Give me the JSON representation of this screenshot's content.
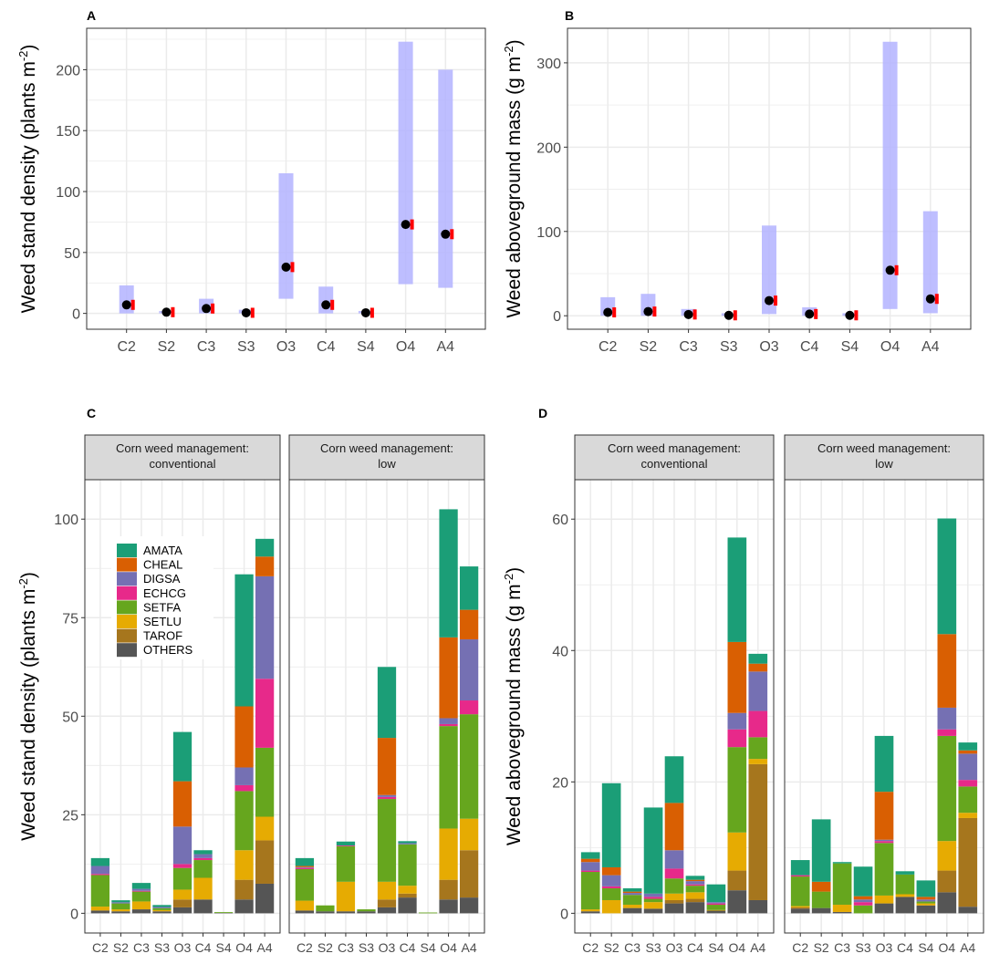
{
  "colors": {
    "panel_bg": "#ffffff",
    "grid": "#ebebeb",
    "frame": "#333333",
    "ci": "#b3b3ff",
    "point": "#000000",
    "obs": "#ff0000",
    "strip": "#d9d9d9",
    "text": "#4d4d4d"
  },
  "chart_data": [
    {
      "id": "A",
      "type": "pointrange",
      "panel_label": "A",
      "ylabel_main": "Weed stand density (plants m",
      "ylabel_sup": "-2",
      "ylabel_close": ")",
      "categories": [
        "C2",
        "S2",
        "C3",
        "S3",
        "O3",
        "C4",
        "S4",
        "O4",
        "A4"
      ],
      "estimate": [
        7,
        1,
        4,
        0.5,
        38,
        7,
        0.5,
        73,
        65
      ],
      "lower": [
        0,
        0,
        0,
        0,
        12,
        0,
        0,
        24,
        21
      ],
      "upper": [
        23,
        2,
        12,
        3,
        115,
        22,
        2,
        223,
        200
      ],
      "observed": [
        7,
        1,
        4,
        0.5,
        38,
        7,
        0.5,
        73,
        65
      ],
      "yticks": [
        0,
        50,
        100,
        150,
        200
      ],
      "ylim": [
        -13,
        234
      ]
    },
    {
      "id": "B",
      "type": "pointrange",
      "panel_label": "B",
      "ylabel_main": "Weed aboveground mass (g m",
      "ylabel_sup": "-2",
      "ylabel_close": ")",
      "categories": [
        "C2",
        "S2",
        "C3",
        "S3",
        "O3",
        "C4",
        "S4",
        "O4",
        "A4"
      ],
      "estimate": [
        4,
        5,
        1.5,
        0.5,
        18,
        2,
        0.5,
        54,
        20
      ],
      "lower": [
        0,
        0,
        0,
        0,
        2,
        0,
        0,
        8,
        3
      ],
      "upper": [
        22,
        26,
        8,
        3,
        107,
        10,
        3,
        325,
        124
      ],
      "observed": [
        4,
        5,
        1.5,
        0.5,
        18,
        2,
        0.5,
        54,
        20
      ],
      "yticks": [
        0,
        100,
        200,
        300
      ],
      "ylim": [
        -16,
        341
      ]
    },
    {
      "id": "C",
      "type": "stacked-bar",
      "panel_label": "C",
      "ylabel_main": "Weed stand density (plants m",
      "ylabel_sup": "-2",
      "ylabel_close": ")",
      "facets": [
        "conventional",
        "low"
      ],
      "facet_strips": [
        [
          "Corn weed management:",
          "conventional"
        ],
        [
          "Corn weed management:",
          "low"
        ]
      ],
      "categories": [
        "C2",
        "S2",
        "C3",
        "S3",
        "O3",
        "C4",
        "S4",
        "O4",
        "A4"
      ],
      "species": [
        "AMATA",
        "CHEAL",
        "DIGSA",
        "ECHCG",
        "SETFA",
        "SETLU",
        "TAROF",
        "OTHERS"
      ],
      "species_colors": [
        "#1b9e77",
        "#d95f02",
        "#7570b3",
        "#e7298a",
        "#66a61e",
        "#e6ab02",
        "#a6761d",
        "#555555"
      ],
      "values": {
        "conventional": [
          [
            2,
            0,
            2,
            0.3,
            8,
            1,
            0,
            0.7
          ],
          [
            0.5,
            0,
            0.3,
            0,
            1.5,
            0.5,
            0,
            0.5
          ],
          [
            1.5,
            0,
            0.5,
            0.2,
            2.5,
            2,
            0,
            1
          ],
          [
            0.5,
            0,
            0.3,
            0,
            0.5,
            0.3,
            0,
            0.5
          ],
          [
            12.5,
            11.5,
            9.5,
            1,
            5.5,
            2.5,
            2,
            1.5
          ],
          [
            1,
            0,
            1,
            0.5,
            4.5,
            5.5,
            0,
            3.5
          ],
          [
            0,
            0,
            0,
            0,
            0.2,
            0,
            0,
            0.1
          ],
          [
            33.5,
            15.5,
            4.5,
            1.5,
            15,
            7.5,
            5,
            3.5
          ],
          [
            4.5,
            5,
            26,
            17.5,
            17.5,
            6,
            11,
            7.5
          ]
        ],
        "low": [
          [
            2,
            0.3,
            0.2,
            0.3,
            8,
            2.5,
            0,
            0.7
          ],
          [
            0,
            0,
            0,
            0,
            1.5,
            0,
            0,
            0.5
          ],
          [
            1,
            0,
            0,
            0.2,
            9,
            7.5,
            0,
            0.5
          ],
          [
            0,
            0,
            0,
            0,
            0.5,
            0,
            0,
            0.5
          ],
          [
            18,
            14.5,
            0.5,
            0.5,
            21,
            4.5,
            2,
            1.5
          ],
          [
            0.5,
            0,
            0.3,
            0,
            10.5,
            2,
            1,
            4
          ],
          [
            0,
            0,
            0,
            0,
            0.2,
            0,
            0,
            0
          ],
          [
            32.5,
            20.5,
            1.5,
            0.5,
            26,
            13,
            5,
            3.5
          ],
          [
            11,
            7.5,
            15.5,
            3.5,
            26.5,
            8,
            12,
            4
          ]
        ]
      },
      "yticks": [
        0,
        25,
        50,
        75,
        100
      ],
      "ylim": [
        -5,
        110
      ]
    },
    {
      "id": "D",
      "type": "stacked-bar",
      "panel_label": "D",
      "ylabel_main": "Weed aboveground mass (g m",
      "ylabel_sup": "-2",
      "ylabel_close": ")",
      "facets": [
        "conventional",
        "low"
      ],
      "facet_strips": [
        [
          "Corn weed management:",
          "conventional"
        ],
        [
          "Corn weed management:",
          "low"
        ]
      ],
      "categories": [
        "C2",
        "S2",
        "C3",
        "S3",
        "O3",
        "C4",
        "S4",
        "O4",
        "A4"
      ],
      "species": [
        "AMATA",
        "CHEAL",
        "DIGSA",
        "ECHCG",
        "SETFA",
        "SETLU",
        "TAROF",
        "OTHERS"
      ],
      "species_colors": [
        "#1b9e77",
        "#d95f02",
        "#7570b3",
        "#e7298a",
        "#66a61e",
        "#e6ab02",
        "#a6761d",
        "#555555"
      ],
      "values": {
        "conventional": [
          [
            1,
            0.5,
            1.3,
            0.2,
            5.7,
            0.3,
            0,
            0.3
          ],
          [
            12.8,
            1.2,
            1.7,
            0.3,
            1.8,
            2,
            0,
            0
          ],
          [
            0.5,
            0.2,
            0.3,
            0,
            1.5,
            0.5,
            0,
            0.8
          ],
          [
            13.1,
            0,
            0.5,
            0.3,
            0.5,
            1,
            0,
            0.7
          ],
          [
            7.1,
            7.2,
            2.8,
            1.5,
            2.3,
            1,
            0.5,
            1.5
          ],
          [
            0.6,
            0.2,
            0.5,
            0.2,
            1,
            1,
            0.5,
            1.7
          ],
          [
            2.7,
            0,
            0.2,
            0.2,
            0.8,
            0.1,
            0,
            0.4
          ],
          [
            15.9,
            10.8,
            2.5,
            2.7,
            13,
            5.8,
            3,
            3.5
          ],
          [
            1.5,
            1.2,
            6,
            4,
            3.3,
            0.8,
            20.7,
            2
          ]
        ],
        "low": [
          [
            2.3,
            0,
            0,
            0.2,
            4.5,
            0.2,
            0.2,
            0.7
          ],
          [
            9.5,
            1.5,
            0,
            0,
            2.5,
            0,
            0,
            0.8
          ],
          [
            0.2,
            0,
            0,
            0,
            6.3,
            1.1,
            0,
            0.2
          ],
          [
            4.5,
            0.5,
            0.4,
            0.5,
            1.2,
            0,
            0,
            0
          ],
          [
            8.5,
            7.3,
            0.2,
            0.3,
            8,
            1.2,
            0,
            1.5
          ],
          [
            0.5,
            0,
            0,
            0,
            3,
            0.4,
            0,
            2.5
          ],
          [
            2.5,
            0.4,
            0.3,
            0,
            0.3,
            0.3,
            0,
            1.2
          ],
          [
            17.6,
            11.2,
            3.3,
            1,
            16,
            4.5,
            3.3,
            3.2
          ],
          [
            1.2,
            0.5,
            4,
            1,
            4,
            0.8,
            13.5,
            1
          ]
        ]
      },
      "yticks": [
        0,
        20,
        40,
        60
      ],
      "ylim": [
        -3,
        66
      ]
    }
  ]
}
